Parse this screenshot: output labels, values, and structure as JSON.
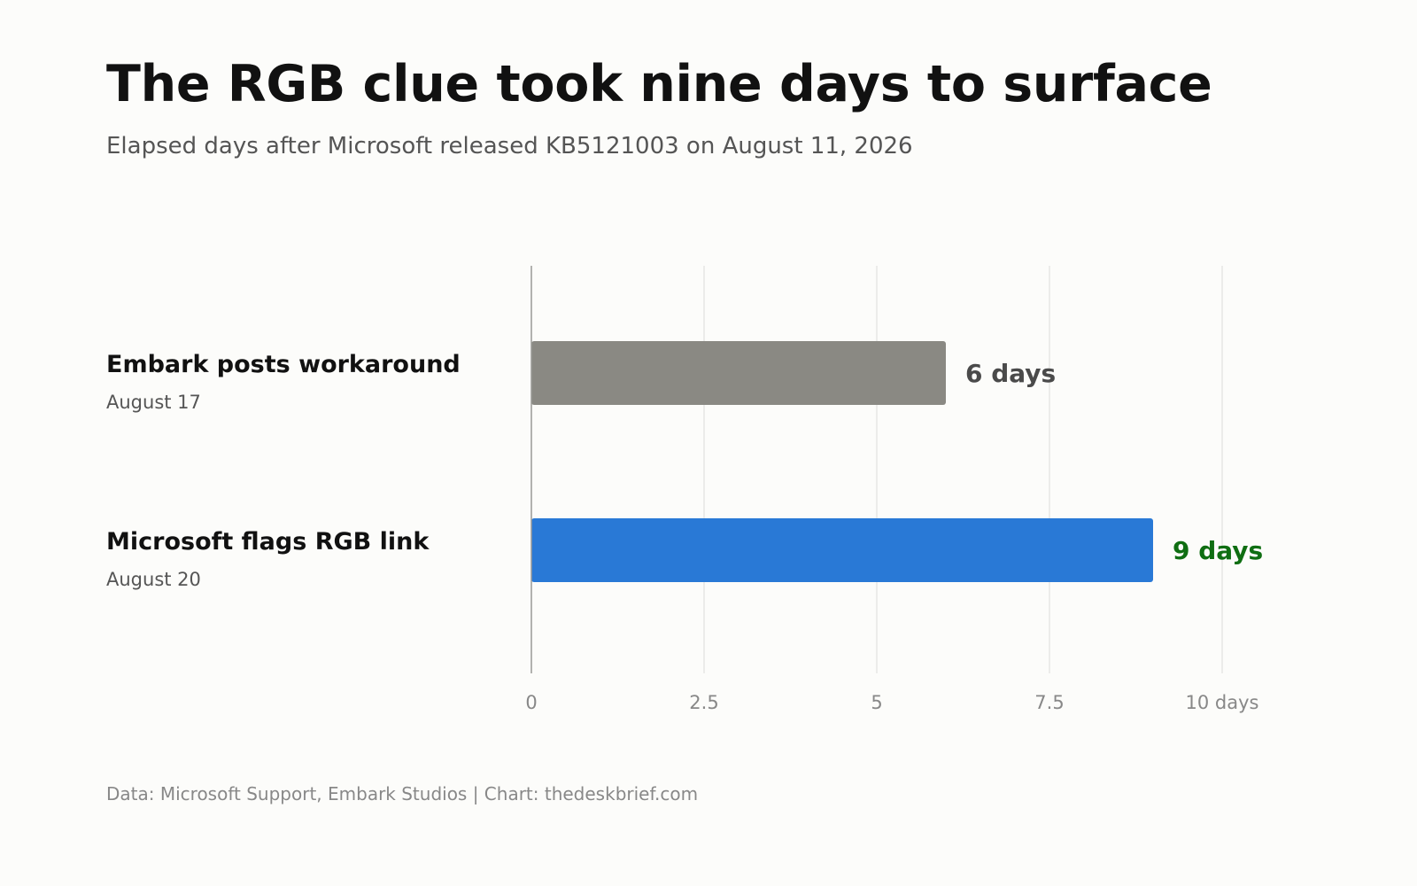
{
  "header": {
    "title": "The RGB clue took nine days to surface",
    "subtitle": "Elapsed days after Microsoft released KB5121003 on August 11, 2026"
  },
  "footer": {
    "source": "Data: Microsoft Support, Embark Studios | Chart: thedeskbrief.com"
  },
  "chart_data": {
    "type": "bar",
    "orientation": "horizontal",
    "title": "The RGB clue took nine days to surface",
    "subtitle": "Elapsed days after Microsoft released KB5121003 on August 11, 2026",
    "xlabel": "",
    "ylabel": "",
    "xlim": [
      0,
      10
    ],
    "grid": true,
    "ticks": [
      {
        "value": 0,
        "label": "0"
      },
      {
        "value": 2.5,
        "label": "2.5"
      },
      {
        "value": 5,
        "label": "5"
      },
      {
        "value": 7.5,
        "label": "7.5"
      },
      {
        "value": 10,
        "label": "10 days"
      }
    ],
    "categories": [
      {
        "label": "Embark posts workaround",
        "date": "August 17"
      },
      {
        "label": "Microsoft flags RGB link",
        "date": "August 20"
      }
    ],
    "values": [
      6,
      9
    ],
    "value_labels": [
      "6 days",
      "9 days"
    ],
    "bar_colors": [
      "#8a8983",
      "#2979d6"
    ],
    "value_label_colors": [
      "#4a4a4a",
      "#0f6e12"
    ]
  }
}
